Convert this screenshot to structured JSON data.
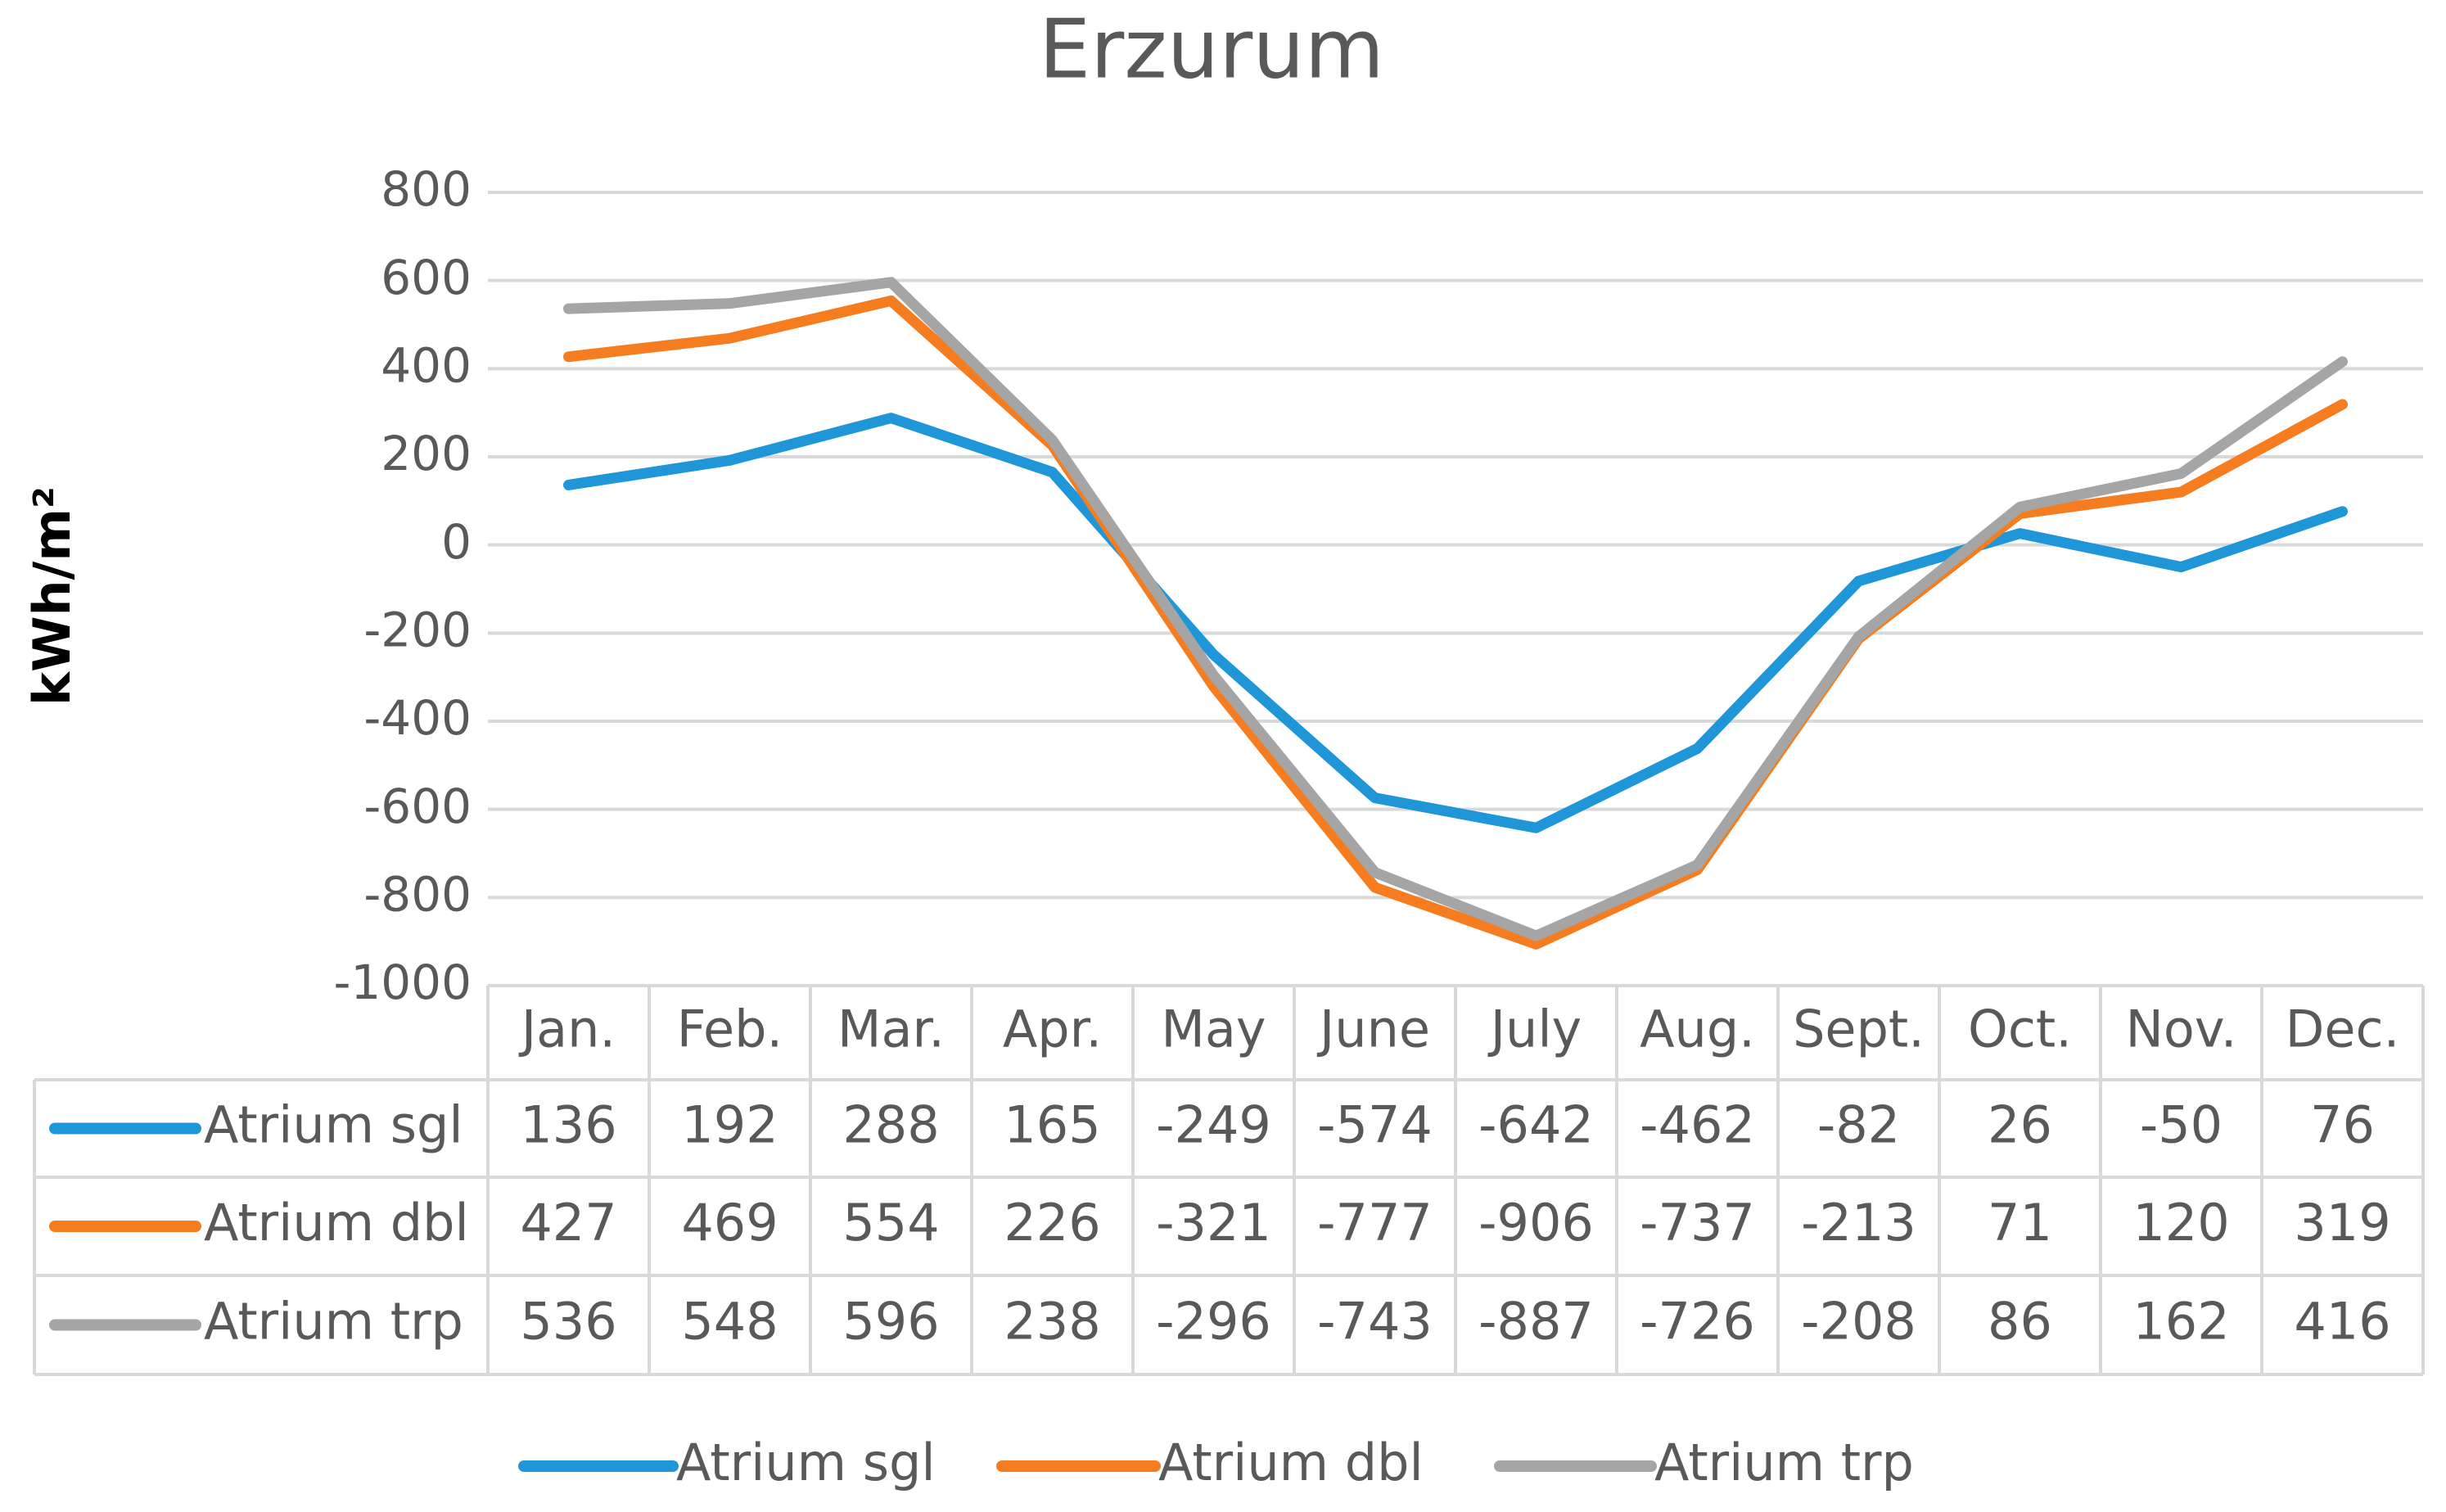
{
  "chart_data": {
    "type": "line",
    "title": "Erzurum",
    "ylabel": "kWh/m²",
    "categories": [
      "Jan.",
      "Feb.",
      "Mar.",
      "Apr.",
      "May",
      "June",
      "July",
      "Aug.",
      "Sept.",
      "Oct.",
      "Nov.",
      "Dec."
    ],
    "series": [
      {
        "name": "Atrium sgl",
        "color": "#1f96d8",
        "values": [
          136,
          192,
          288,
          165,
          -249,
          -574,
          -642,
          -462,
          -82,
          26,
          -50,
          76
        ]
      },
      {
        "name": "Atrium dbl",
        "color": "#f57d20",
        "values": [
          427,
          469,
          554,
          226,
          -321,
          -777,
          -906,
          -737,
          -213,
          71,
          120,
          319
        ]
      },
      {
        "name": "Atrium trp",
        "color": "#a5a5a5",
        "values": [
          536,
          548,
          596,
          238,
          -296,
          -743,
          -887,
          -726,
          -208,
          86,
          162,
          416
        ]
      }
    ],
    "ylim": [
      -1000,
      800
    ],
    "yticks": [
      -1000,
      -800,
      -600,
      -400,
      -200,
      0,
      200,
      400,
      600,
      800
    ],
    "grid": true
  }
}
